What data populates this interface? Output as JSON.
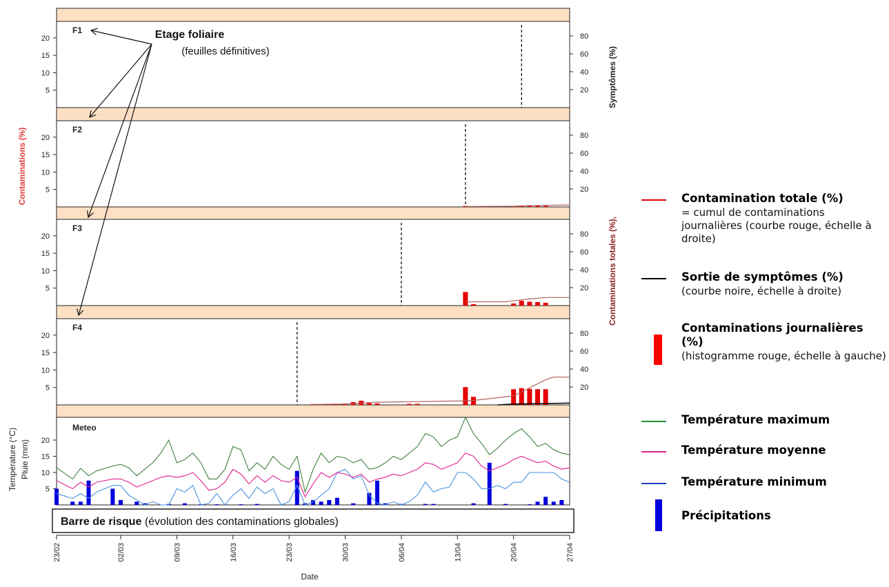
{
  "chart_data": {
    "type": "bar",
    "left_axis_label": "Contaminations (%)",
    "right_axis_label_top": "Symptômes (%)",
    "right_axis_label_bottom": "Contaminations totales (%),",
    "x_axis_label": "Date",
    "x_tick_labels": [
      "23/02",
      "02/03",
      "09/03",
      "16/03",
      "23/03",
      "30/03",
      "06/04",
      "13/04",
      "20/04",
      "27/04"
    ],
    "x_range": [
      "23/02",
      "27/04"
    ],
    "left_ticks": [
      5,
      10,
      15,
      20
    ],
    "right_ticks": [
      20,
      40,
      60,
      80
    ],
    "ylim_left": [
      0,
      25
    ],
    "ylim_right": [
      0,
      100
    ],
    "annotation": {
      "title": "Etage foliaire",
      "subtitle": "(feuilles définitives)"
    },
    "panels": [
      {
        "label": "F1",
        "symptom_date": "21/04",
        "daily_contamination": {
          "dates": [],
          "values": []
        },
        "total_contamination": {
          "dates": [],
          "values": []
        }
      },
      {
        "label": "F2",
        "symptom_date": "14/04",
        "daily_contamination": {
          "dates": [
            "14/04",
            "16/04",
            "20/04",
            "21/04",
            "22/04",
            "23/04",
            "24/04"
          ],
          "values": [
            0.3,
            0.2,
            0.2,
            0.4,
            0.3,
            0.3,
            0.3
          ]
        },
        "total_contamination": {
          "dates": [
            "14/04",
            "20/04",
            "22/04",
            "27/04"
          ],
          "values": [
            0.5,
            0.8,
            1.5,
            2.2
          ]
        }
      },
      {
        "label": "F3",
        "symptom_date": "06/04",
        "daily_contamination": {
          "dates": [
            "14/04",
            "15/04",
            "20/04",
            "21/04",
            "22/04",
            "23/04",
            "24/04"
          ],
          "values": [
            3.9,
            0.4,
            0.6,
            1.4,
            1.1,
            1.0,
            0.8
          ]
        },
        "total_contamination": {
          "dates": [
            "14/04",
            "15/04",
            "19/04",
            "21/04",
            "24/04",
            "27/04"
          ],
          "values": [
            4,
            4.2,
            4.2,
            6.5,
            9,
            9
          ]
        }
      },
      {
        "label": "F4",
        "symptom_date": "24/03",
        "daily_contamination": {
          "dates": [
            "26/03",
            "27/03",
            "28/03",
            "29/03",
            "30/03",
            "31/03",
            "01/04",
            "02/04",
            "03/04",
            "07/04",
            "08/04",
            "14/04",
            "15/04",
            "20/04",
            "21/04",
            "22/04",
            "23/04",
            "24/04"
          ],
          "values": [
            0.2,
            0.2,
            0.2,
            0.2,
            0.4,
            0.8,
            1.2,
            0.5,
            0.4,
            0.3,
            0.3,
            5.1,
            2.3,
            4.5,
            4.8,
            4.6,
            4.5,
            4.5
          ]
        },
        "total_contamination": {
          "dates": [
            "26/03",
            "30/03",
            "03/04",
            "07/04",
            "14/04",
            "15/04",
            "20/04",
            "24/04",
            "25/04",
            "27/04"
          ],
          "values": [
            0.5,
            1,
            3,
            3.5,
            4.5,
            5,
            10,
            28,
            31,
            31
          ]
        },
        "symptom_curve": {
          "dates": [
            "18/04",
            "20/04",
            "24/04",
            "27/04"
          ],
          "values": [
            0,
            1,
            1.5,
            2
          ]
        }
      }
    ],
    "meteo": {
      "label": "Meteo",
      "ylabel_top": "Température (°C)",
      "ylabel_bottom": "Pluie (mm)",
      "ticks": [
        5,
        10,
        15,
        20
      ],
      "ylim": [
        0,
        25
      ],
      "temp_max": {
        "dates": [
          "23/02",
          "25/02",
          "26/02",
          "27/02",
          "28/02",
          "01/03",
          "02/03",
          "03/03",
          "04/03",
          "05/03",
          "06/03",
          "07/03",
          "08/03",
          "09/03",
          "10/03",
          "11/03",
          "12/03",
          "13/03",
          "14/03",
          "15/03",
          "16/03",
          "17/03",
          "18/03",
          "19/03",
          "20/03",
          "21/03",
          "22/03",
          "23/03",
          "24/03",
          "25/03",
          "26/03",
          "27/03",
          "28/03",
          "29/03",
          "30/03",
          "31/03",
          "01/04",
          "02/04",
          "03/04",
          "04/04",
          "05/04",
          "06/04",
          "07/04",
          "08/04",
          "09/04",
          "10/04",
          "11/04",
          "12/04",
          "13/04",
          "14/04",
          "15/04",
          "16/04",
          "17/04",
          "18/04",
          "19/04",
          "20/04",
          "21/04",
          "22/04",
          "23/04",
          "24/04",
          "25/04",
          "26/04",
          "27/04"
        ],
        "values": [
          11.5,
          8,
          11.3,
          9,
          10.5,
          12,
          12.5,
          11.5,
          9,
          11,
          13,
          16,
          20,
          13,
          14,
          16,
          13,
          8,
          8,
          11,
          18,
          17,
          10.5,
          13,
          11,
          15,
          12.5,
          11,
          15,
          4,
          11,
          16,
          13,
          15,
          14.5,
          13,
          14,
          11,
          11.5,
          13,
          15,
          14,
          16,
          18,
          22,
          21,
          18,
          20,
          21,
          27,
          22,
          19,
          15.5,
          17.5,
          20,
          22,
          23.5,
          21,
          18,
          19,
          17,
          16,
          15.5
        ]
      },
      "temp_mean": {
        "dates": [
          "23/02",
          "25/02",
          "26/02",
          "27/02",
          "28/02",
          "01/03",
          "02/03",
          "03/03",
          "04/03",
          "05/03",
          "06/03",
          "07/03",
          "08/03",
          "09/03",
          "10/03",
          "11/03",
          "12/03",
          "13/03",
          "14/03",
          "15/03",
          "16/03",
          "17/03",
          "18/03",
          "19/03",
          "20/03",
          "21/03",
          "22/03",
          "23/03",
          "24/03",
          "25/03",
          "26/03",
          "27/03",
          "28/03",
          "29/03",
          "30/03",
          "31/03",
          "01/04",
          "02/04",
          "03/04",
          "04/04",
          "05/04",
          "06/04",
          "07/04",
          "08/04",
          "09/04",
          "10/04",
          "11/04",
          "12/04",
          "13/04",
          "14/04",
          "15/04",
          "16/04",
          "17/04",
          "18/04",
          "19/04",
          "20/04",
          "21/04",
          "22/04",
          "23/04",
          "24/04",
          "25/04",
          "26/04",
          "27/04"
        ],
        "values": [
          7.5,
          5,
          7,
          5.5,
          7,
          8,
          8,
          7,
          5.5,
          6.5,
          7.5,
          8.5,
          9,
          8.5,
          9,
          10,
          7.5,
          4.5,
          5,
          7,
          11,
          9.5,
          6.5,
          9,
          7,
          9,
          7.5,
          7,
          8.5,
          2.5,
          6.5,
          10,
          8.5,
          10,
          9.5,
          8.5,
          9.5,
          7,
          8,
          8.5,
          9.5,
          9,
          10,
          11,
          13,
          12.5,
          11,
          12,
          13,
          16,
          15,
          12,
          10.5,
          11.5,
          12.5,
          14,
          15,
          14,
          13,
          13.5,
          12,
          11,
          11.5
        ]
      },
      "temp_min": {
        "dates": [
          "23/02",
          "25/02",
          "26/02",
          "27/02",
          "28/02",
          "01/03",
          "02/03",
          "03/03",
          "04/03",
          "05/03",
          "06/03",
          "07/03",
          "08/03",
          "09/03",
          "10/03",
          "11/03",
          "12/03",
          "13/03",
          "14/03",
          "15/03",
          "16/03",
          "17/03",
          "18/03",
          "19/03",
          "20/03",
          "21/03",
          "22/03",
          "23/03",
          "24/03",
          "25/03",
          "26/03",
          "27/03",
          "28/03",
          "29/03",
          "30/03",
          "31/03",
          "01/04",
          "02/04",
          "03/04",
          "04/04",
          "05/04",
          "06/04",
          "07/04",
          "08/04",
          "09/04",
          "10/04",
          "11/04",
          "12/04",
          "13/04",
          "14/04",
          "15/04",
          "16/04",
          "17/04",
          "18/04",
          "19/04",
          "20/04",
          "21/04",
          "22/04",
          "23/04",
          "24/04",
          "25/04",
          "26/04",
          "27/04"
        ],
        "values": [
          3.5,
          2,
          3.5,
          2,
          4,
          6,
          6,
          3,
          1.5,
          0,
          1,
          0,
          0,
          5,
          4,
          6,
          0,
          0.5,
          3.5,
          0,
          3,
          5,
          2,
          5.5,
          3.5,
          5,
          0,
          1,
          6,
          0,
          1,
          3,
          5,
          10,
          11,
          8,
          9,
          3,
          0.5,
          0,
          1,
          0,
          1,
          3,
          7,
          4,
          5,
          5.5,
          10,
          10,
          8,
          5,
          5,
          6,
          5,
          7,
          7,
          10,
          10,
          10,
          10,
          8,
          7
        ]
      },
      "precipitation": {
        "dates": [
          "23/02",
          "25/02",
          "26/02",
          "27/02",
          "01/03",
          "02/03",
          "04/03",
          "05/03",
          "08/03",
          "10/03",
          "12/03",
          "14/03",
          "17/03",
          "19/03",
          "24/03",
          "25/03",
          "26/03",
          "27/03",
          "28/03",
          "29/03",
          "31/03",
          "02/04",
          "03/04",
          "04/04",
          "06/04",
          "09/04",
          "10/04",
          "15/04",
          "17/04",
          "19/04",
          "22/04",
          "23/04",
          "24/04",
          "25/04",
          "26/04"
        ],
        "values": [
          5,
          1,
          1,
          7.5,
          5,
          1.5,
          1,
          0.5,
          0.3,
          0.5,
          0.2,
          0.2,
          0.2,
          0.3,
          10.5,
          0.5,
          1.5,
          1,
          1.5,
          2.2,
          0.5,
          3.7,
          7.5,
          0.5,
          0.3,
          0.3,
          0.3,
          0.5,
          13,
          0.3,
          0.2,
          1,
          2.5,
          1,
          1.5
        ]
      }
    },
    "risk_bar": {
      "title": "Barre de risque",
      "desc": "(évolution des contaminations globales)"
    },
    "colors": {
      "panel_band": "#fde0c4",
      "daily_bar": "#e60000",
      "total_line": "#b06060",
      "symptom_line": "#000000",
      "temp_max": "#3f7f3f",
      "temp_mean": "#e0208f",
      "temp_min": "#4a90e2",
      "precip": "#0000dd",
      "left_label": "#e33b3b",
      "right_label": "#8b2020"
    }
  },
  "legend": {
    "total": {
      "title": "Contamination totale (%)",
      "desc": "= cumul de contaminations journalières (courbe rouge, échelle à droite)",
      "color": "#e00000"
    },
    "symptoms": {
      "title": "Sortie de symptômes (%)",
      "desc": "(courbe noire, échelle à droite)",
      "color": "#000000"
    },
    "daily": {
      "title": "Contaminations journalières (%)",
      "desc": "(histogramme rouge, échelle à gauche)",
      "color": "#ff0000"
    },
    "tmax": {
      "title": "Température maximum",
      "color": "#1a8f3a"
    },
    "tmean": {
      "title": "Température moyenne",
      "color": "#e0208f"
    },
    "tmin": {
      "title": "Température minimum",
      "color": "#1a3fbf"
    },
    "precip": {
      "title": "Précipitations",
      "color": "#0000dd"
    }
  }
}
